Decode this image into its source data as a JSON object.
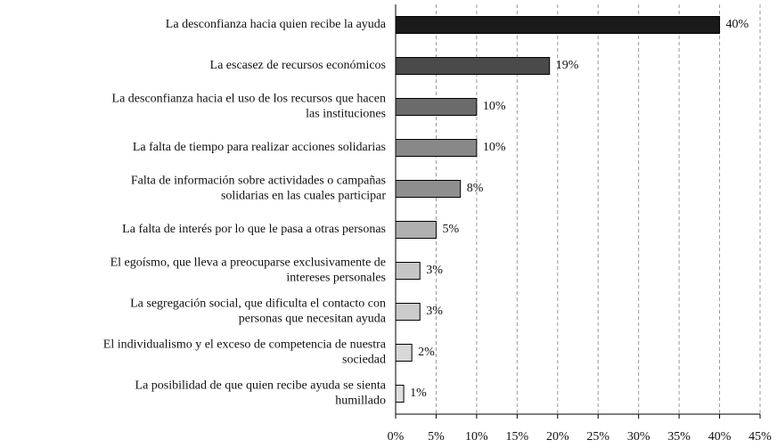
{
  "chart_data": {
    "type": "hbar",
    "categories": [
      "La desconfianza hacia quien recibe la ayuda",
      "La escasez de recursos económicos",
      "La desconfianza hacia el uso de los recursos que hacen\nlas instituciones",
      "La falta de tiempo para realizar acciones solidarias",
      "Falta de información sobre actividades o campañas\nsolidarias en las cuales participar",
      "La falta de interés por lo que le pasa a otras personas",
      "El egoísmo, que lleva a preocuparse exclusivamente de\nintereses personales",
      "La segregación social, que dificulta el contacto con\npersonas que necesitan ayuda",
      "El individualismo y el exceso de competencia de nuestra\nsociedad",
      "La posibilidad de que quien recibe ayuda se sienta\nhumillado"
    ],
    "values": [
      40,
      19,
      10,
      10,
      8,
      5,
      3,
      3,
      2,
      1
    ],
    "value_labels": [
      "40%",
      "19%",
      "10%",
      "10%",
      "8%",
      "5%",
      "3%",
      "3%",
      "2%",
      "1%"
    ],
    "colors": [
      "#1a1a1a",
      "#4a4a4a",
      "#6b6b6b",
      "#888888",
      "#8e8e8e",
      "#b0b0b0",
      "#c6c6c6",
      "#cbcbcb",
      "#d8d8d8",
      "#e0e0e0"
    ],
    "xlim": [
      0,
      45
    ],
    "xticks": [
      {
        "value": 0,
        "label": "0%"
      },
      {
        "value": 5,
        "label": "5%"
      },
      {
        "value": 10,
        "label": "10%"
      },
      {
        "value": 15,
        "label": "15%"
      },
      {
        "value": 20,
        "label": "20%"
      },
      {
        "value": 25,
        "label": "25%"
      },
      {
        "value": 30,
        "label": "30%"
      },
      {
        "value": 35,
        "label": "35%"
      },
      {
        "value": 40,
        "label": "40%"
      },
      {
        "value": 45,
        "label": "45%"
      }
    ],
    "grid": true
  }
}
